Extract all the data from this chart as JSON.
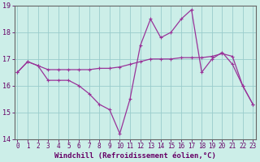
{
  "xlabel": "Windchill (Refroidissement éolien,°C)",
  "bg_color": "#cceee8",
  "line_color": "#993399",
  "grid_color": "#99cccc",
  "ylim": [
    14,
    19
  ],
  "yticks": [
    14,
    15,
    16,
    17,
    18,
    19
  ],
  "xticks": [
    0,
    1,
    2,
    3,
    4,
    5,
    6,
    7,
    8,
    9,
    10,
    11,
    12,
    13,
    14,
    15,
    16,
    17,
    18,
    19,
    20,
    21,
    22,
    23
  ],
  "line1_x": [
    0,
    1,
    2,
    3,
    4,
    5,
    6,
    7,
    8,
    9,
    10,
    11,
    12,
    13,
    14,
    15,
    16,
    17,
    18,
    19,
    20,
    21,
    22,
    23
  ],
  "line1_y": [
    16.5,
    16.9,
    16.75,
    16.6,
    16.6,
    16.6,
    16.6,
    16.6,
    16.65,
    16.65,
    16.7,
    16.8,
    16.9,
    17.0,
    17.0,
    17.0,
    17.05,
    17.05,
    17.05,
    17.1,
    17.2,
    17.1,
    16.0,
    15.3
  ],
  "line2_x": [
    0,
    1,
    2,
    3,
    4,
    5,
    6,
    7,
    8,
    9,
    10,
    11,
    12,
    13,
    14,
    15,
    16,
    17,
    18,
    19,
    20,
    21,
    22,
    23
  ],
  "line2_y": [
    16.5,
    16.9,
    16.75,
    16.2,
    16.2,
    16.2,
    16.0,
    15.7,
    15.3,
    15.1,
    14.2,
    15.5,
    17.5,
    18.5,
    17.8,
    18.0,
    18.5,
    18.85,
    16.5,
    17.0,
    17.25,
    16.8,
    16.0,
    15.3
  ],
  "tick_fontsize": 5.5,
  "xlabel_fontsize": 6.5,
  "axis_color": "#660066",
  "spine_color": "#666666"
}
